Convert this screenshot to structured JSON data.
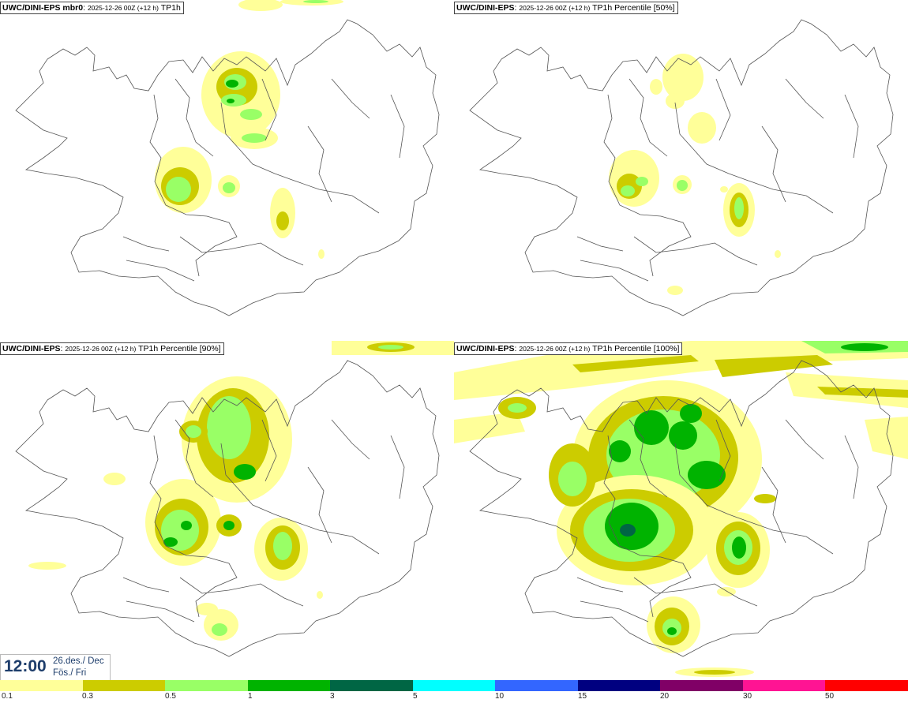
{
  "panels": [
    {
      "model": "UWC/DINI-EPS mbr0",
      "run": "2025-12-26 00Z (+12 h)",
      "field": "TP1h"
    },
    {
      "model": "UWC/DINI-EPS",
      "run": "2025-12-26 00Z (+12 h)",
      "field": "TP1h Percentile [50%]"
    },
    {
      "model": "UWC/DINI-EPS",
      "run": "2025-12-26 00Z (+12 h)",
      "field": "TP1h Percentile [90%]"
    },
    {
      "model": "UWC/DINI-EPS",
      "run": "2025-12-26 00Z (+12 h)",
      "field": "TP1h Percentile [100%]"
    }
  ],
  "time": {
    "clock": "12:00",
    "date_line": "26.des./ Dec",
    "day_line": "Fös./ Fri"
  },
  "legend": {
    "labels": [
      "0.1",
      "0.3",
      "0.5",
      "1",
      "3",
      "5",
      "10",
      "15",
      "20",
      "30",
      "50"
    ],
    "colors": [
      "#ffff99",
      "#cccc00",
      "#99ff66",
      "#00b300",
      "#006644",
      "#00ffff",
      "#3366ff",
      "#000080",
      "#800066",
      "#ff1493",
      "#ff0000"
    ]
  }
}
